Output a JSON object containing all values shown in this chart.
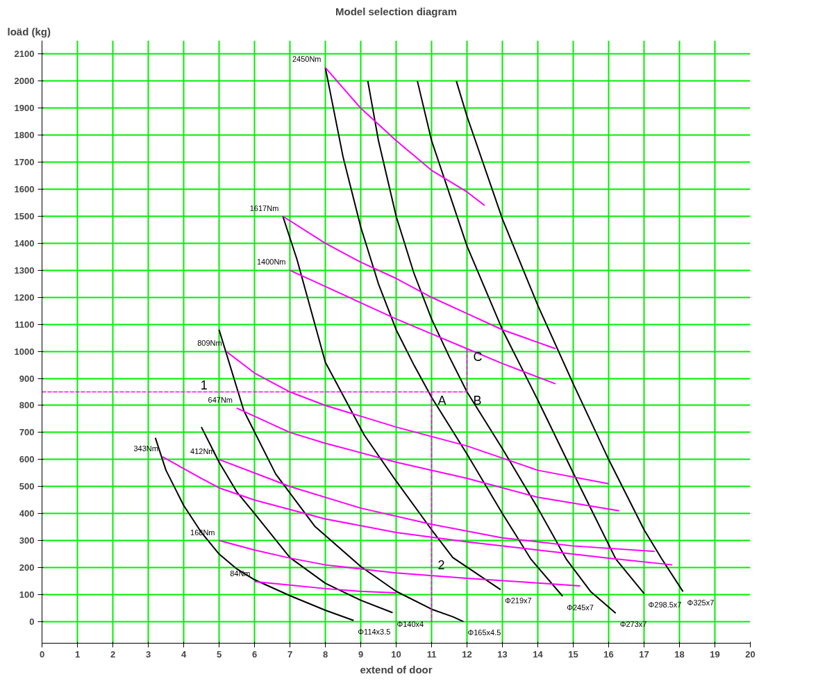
{
  "chart_data": {
    "type": "line",
    "title": "Model selection diagram",
    "xlabel": "extend of door",
    "ylabel": "loäd (kg)",
    "xlim": [
      0,
      20
    ],
    "ylim": [
      -80,
      2150
    ],
    "xticks": [
      0,
      1,
      2,
      3,
      4,
      5,
      6,
      7,
      8,
      9,
      10,
      11,
      12,
      13,
      14,
      15,
      16,
      17,
      18,
      19,
      20
    ],
    "yticks": [
      0,
      100,
      200,
      300,
      400,
      500,
      600,
      700,
      800,
      900,
      1000,
      1100,
      1200,
      1300,
      1400,
      1500,
      1600,
      1700,
      1800,
      1900,
      2000,
      2100
    ],
    "grid": true,
    "marker": "none",
    "line_style": "solid",
    "series": [
      {
        "name": "Φ114x3.5",
        "color": "#000000",
        "x": [
          3.2,
          3.5,
          4,
          4.5,
          5,
          5.5,
          6,
          7,
          8,
          8.8
        ],
        "values": [
          680,
          560,
          430,
          330,
          250,
          195,
          155,
          96,
          42,
          4
        ]
      },
      {
        "name": "Φ140x4",
        "color": "#000000",
        "x": [
          4.5,
          5,
          5.5,
          6,
          7,
          8,
          9,
          9.9
        ],
        "values": [
          720,
          590,
          480,
          400,
          237,
          142,
          79,
          33
        ]
      },
      {
        "name": "Φ165x4.5",
        "color": "#000000",
        "x": [
          5,
          5.7,
          6.6,
          7.7,
          9,
          10,
          11,
          11.6,
          11.9
        ],
        "values": [
          1080,
          780,
          546,
          353,
          204,
          112,
          46,
          18,
          0
        ]
      },
      {
        "name": "Φ219x7",
        "color": "#000000",
        "x": [
          6.8,
          7.2,
          8,
          9.1,
          10,
          11,
          11.6,
          12.95
        ],
        "values": [
          1500,
          1340,
          960,
          690,
          520,
          340,
          237,
          118
        ]
      },
      {
        "name": "Φ245x7",
        "color": "#000000",
        "x": [
          8,
          8.5,
          9,
          9.5,
          10,
          10.5,
          11,
          12,
          13,
          13.8,
          14.7
        ],
        "values": [
          2050,
          1720,
          1460,
          1250,
          1080,
          950,
          830,
          620,
          400,
          232,
          94
        ]
      },
      {
        "name": "Φ273x7",
        "color": "#000000",
        "x": [
          9.2,
          9.5,
          10,
          10.5,
          11,
          11.5,
          12,
          13,
          14,
          14.8,
          15.5,
          16.2
        ],
        "values": [
          2000,
          1780,
          1500,
          1290,
          1120,
          980,
          850,
          640,
          420,
          232,
          110,
          31
        ]
      },
      {
        "name": "Φ298.5x7",
        "color": "#000000",
        "x": [
          10.6,
          11,
          12,
          13,
          14,
          15,
          16.2,
          17
        ],
        "values": [
          2000,
          1780,
          1390,
          1080,
          820,
          550,
          232,
          104
        ]
      },
      {
        "name": "Φ325x7",
        "color": "#000000",
        "x": [
          11.7,
          12,
          13,
          14,
          15,
          16,
          17,
          17.5,
          18.1
        ],
        "values": [
          2000,
          1870,
          1490,
          1170,
          880,
          600,
          340,
          232,
          111
        ]
      },
      {
        "name": "84Nm",
        "color": "#ff00ff",
        "x": [
          6,
          7,
          8,
          9,
          10
        ],
        "values": [
          148,
          135,
          122,
          112,
          106
        ]
      },
      {
        "name": "168Nm",
        "color": "#ff00ff",
        "x": [
          5,
          6,
          7,
          8,
          10,
          12,
          14,
          15.2
        ],
        "values": [
          300,
          265,
          235,
          210,
          180,
          160,
          143,
          132
        ]
      },
      {
        "name": "343Nm",
        "color": "#ff00ff",
        "x": [
          3.4,
          4.5,
          5,
          6,
          8,
          10,
          12,
          14,
          16,
          17.8
        ],
        "values": [
          610,
          530,
          495,
          450,
          380,
          330,
          295,
          265,
          235,
          210
        ]
      },
      {
        "name": "412Nm",
        "color": "#ff00ff",
        "x": [
          5,
          6,
          7,
          9,
          11,
          13,
          15,
          17.3
        ],
        "values": [
          600,
          550,
          500,
          420,
          360,
          310,
          280,
          260
        ]
      },
      {
        "name": "647Nm",
        "color": "#ff00ff",
        "x": [
          5.5,
          7,
          8,
          10,
          12,
          14,
          16.3
        ],
        "values": [
          790,
          700,
          660,
          590,
          530,
          460,
          410
        ]
      },
      {
        "name": "809Nm",
        "color": "#ff00ff",
        "x": [
          5.2,
          6,
          7,
          8,
          10,
          12,
          14,
          16
        ],
        "values": [
          1000,
          920,
          850,
          800,
          720,
          650,
          560,
          510
        ]
      },
      {
        "name": "1400Nm",
        "color": "#ff00ff",
        "x": [
          7,
          8,
          9,
          10,
          11,
          12,
          13,
          14.5
        ],
        "values": [
          1300,
          1240,
          1180,
          1120,
          1065,
          1010,
          955,
          880
        ]
      },
      {
        "name": "1617Nm",
        "color": "#ff00ff",
        "x": [
          6.8,
          8,
          9,
          10,
          11,
          12,
          13,
          14.5
        ],
        "values": [
          1500,
          1400,
          1330,
          1270,
          1200,
          1140,
          1080,
          1010
        ]
      },
      {
        "name": "2450Nm",
        "color": "#ff00ff",
        "x": [
          8,
          9,
          10,
          11,
          12,
          12.5
        ],
        "values": [
          2050,
          1900,
          1780,
          1670,
          1590,
          1540
        ]
      },
      {
        "color": "#ff00ff",
        "line_style": "dashed",
        "x": [
          0,
          12
        ],
        "values": [
          850,
          850
        ]
      },
      {
        "color": "#ff00ff",
        "line_style": "dashed",
        "x": [
          11,
          11
        ],
        "values": [
          850,
          0
        ]
      },
      {
        "color": "#ff00ff",
        "line_style": "dashed",
        "x": [
          12,
          12
        ],
        "values": [
          850,
          1010
        ]
      }
    ],
    "annotations": [
      {
        "text": "1",
        "x": 4.3,
        "y": 850
      },
      {
        "text": "2",
        "x": 11,
        "y": 250
      },
      {
        "text": "A",
        "x": 11,
        "y": 850
      },
      {
        "text": "B",
        "x": 12,
        "y": 850
      },
      {
        "text": "C",
        "x": 12,
        "y": 1010
      }
    ]
  }
}
